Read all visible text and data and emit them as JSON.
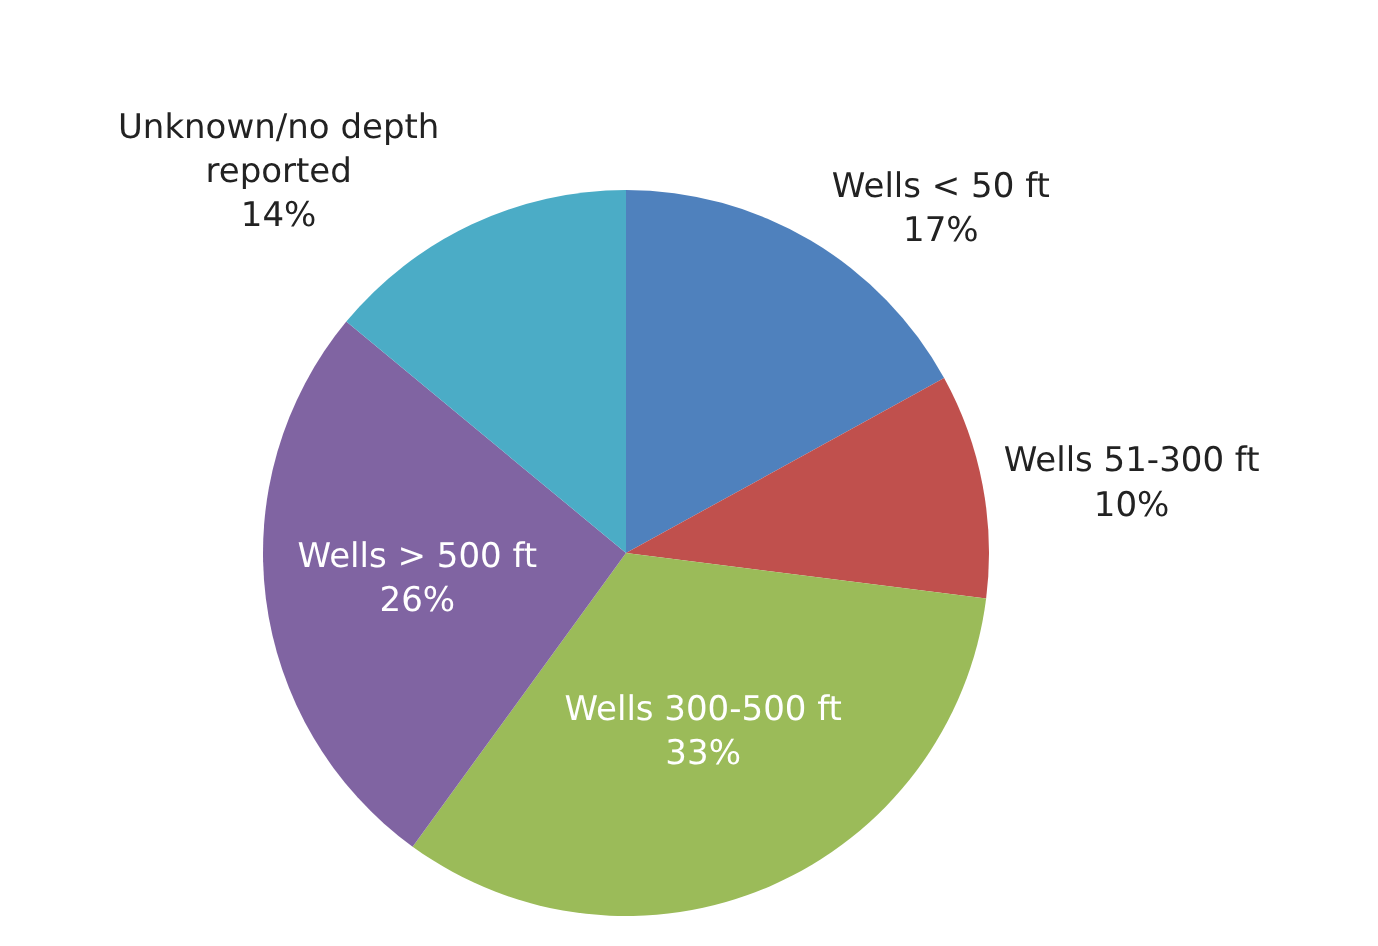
{
  "chart_data": {
    "type": "pie",
    "categories": [
      "Wells < 50 ft",
      "Wells 51-300 ft",
      "Wells 300-500 ft",
      "Wells > 500 ft",
      "Unknown/no depth reported"
    ],
    "values": [
      17,
      10,
      33,
      26,
      14
    ],
    "value_labels": [
      "17%",
      "10%",
      "33%",
      "26%",
      "14%"
    ],
    "colors": [
      "#4f81bd",
      "#c0504d",
      "#9bbb59",
      "#8064a2",
      "#4bacc6"
    ]
  }
}
